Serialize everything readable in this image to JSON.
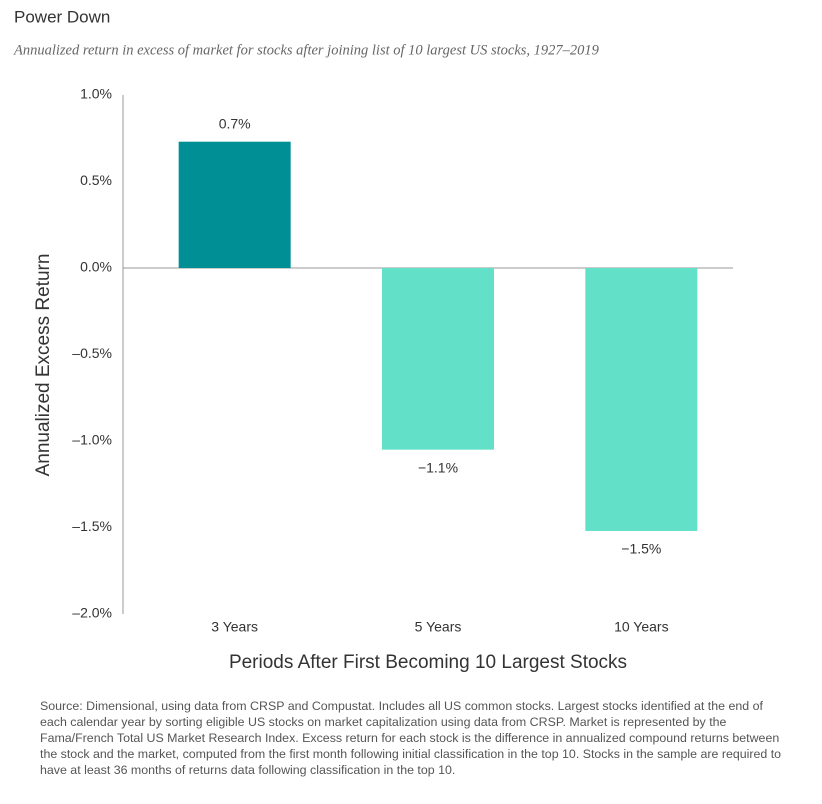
{
  "chart_data": {
    "type": "bar",
    "title": "Power Down",
    "subtitle": "Annualized return in excess of market for stocks after joining list of 10 largest US stocks, 1927–2019",
    "y_label": "Annualized Excess Return",
    "x_label": "Periods After First Becoming 10 Largest Stocks",
    "categories": [
      "3 Years",
      "5 Years",
      "10 Years"
    ],
    "values": [
      0.73,
      -1.05,
      -1.52
    ],
    "value_labels": [
      "0.7%",
      "−1.1%",
      "−1.5%"
    ],
    "colors": [
      "#008f95",
      "#62e0c8",
      "#62e0c8"
    ],
    "ylim": [
      -2.0,
      1.0
    ],
    "yticks": [
      {
        "value": 1.0,
        "label": "1.0%"
      },
      {
        "value": 0.5,
        "label": "0.5%"
      },
      {
        "value": 0.0,
        "label": "0.0%"
      },
      {
        "value": -0.5,
        "label": "–0.5%"
      },
      {
        "value": -1.0,
        "label": "–1.0%"
      },
      {
        "value": -1.5,
        "label": "–1.5%"
      },
      {
        "value": -2.0,
        "label": "–2.0%"
      }
    ],
    "source": "Source: Dimensional, using data from CRSP and Compustat. Includes all US common stocks. Largest stocks identified at the end of each calendar year by sorting eligible US stocks on market capitalization using data from CRSP. Market is represented by the Fama/French Total US Market Research Index. Excess return for each stock is the difference in annualized compound returns between the stock and the market, computed from the first month following initial classification in the top 10. Stocks in the sample are required to have at least 36 months of returns data following classification in the top 10."
  }
}
